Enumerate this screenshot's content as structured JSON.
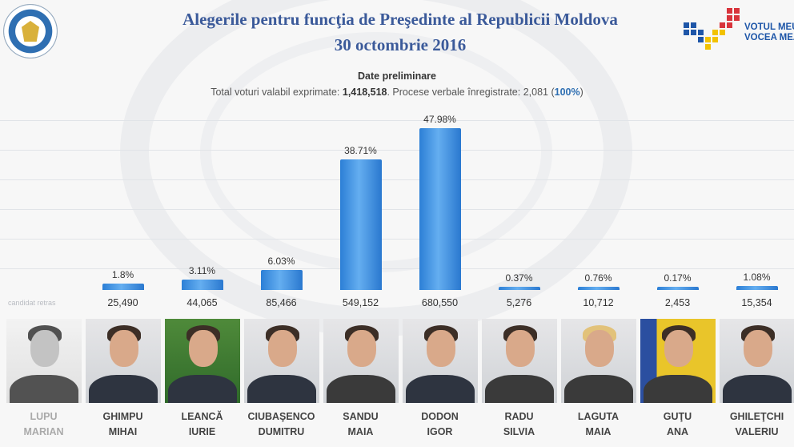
{
  "header": {
    "title": "Alegerile pentru funcţia de Preşedinte al Republicii Moldova",
    "date": "30 octombrie 2016",
    "preliminary": "Date preliminare",
    "totals_prefix": "Total voturi valabil exprimate: ",
    "total_votes": "1,418,518",
    "totals_mid": ". Procese verbale înregistrate: 2,081 (",
    "totals_pct": "100%",
    "totals_suffix": ")"
  },
  "logo": {
    "line1": "VOTUL MEU",
    "line2": "VOCEA MEA"
  },
  "withdrawn_note": "candidat retras",
  "colors": {
    "title": "#3b5a9a",
    "bar": "#2f84d8",
    "logo_blue": "#1e56a8",
    "logo_red": "#d8343b",
    "logo_yellow": "#f2c200"
  },
  "chart_data": {
    "type": "bar",
    "title": "Alegerile pentru funcţia de Preşedinte al Republicii Moldova",
    "categories": [
      "LUPU MARIAN",
      "GHIMPU MIHAI",
      "LEANCĂ IURIE",
      "CIUBAŞENCO DUMITRU",
      "SANDU MAIA",
      "DODON IGOR",
      "RADU SILVIA",
      "LAGUTA MAIA",
      "GUŢU ANA",
      "GHILEŢCHI VALERIU"
    ],
    "values": [
      null,
      1.8,
      3.11,
      6.03,
      38.71,
      47.98,
      0.37,
      0.76,
      0.17,
      1.08
    ],
    "ylim": [
      0,
      50
    ],
    "grid": true,
    "candidates": [
      {
        "surname": "LUPU",
        "first": "MARIAN",
        "votes": "",
        "pct_label": "",
        "withdrawn": true
      },
      {
        "surname": "GHIMPU",
        "first": "MIHAI",
        "votes": "25,490",
        "pct_label": "1.8%",
        "withdrawn": false
      },
      {
        "surname": "LEANCĂ",
        "first": "IURIE",
        "votes": "44,065",
        "pct_label": "3.11%",
        "withdrawn": false
      },
      {
        "surname": "CIUBAŞENCO",
        "first": "DUMITRU",
        "votes": "85,466",
        "pct_label": "6.03%",
        "withdrawn": false
      },
      {
        "surname": "SANDU",
        "first": "MAIA",
        "votes": "549,152",
        "pct_label": "38.71%",
        "withdrawn": false
      },
      {
        "surname": "DODON",
        "first": "IGOR",
        "votes": "680,550",
        "pct_label": "47.98%",
        "withdrawn": false
      },
      {
        "surname": "RADU",
        "first": "SILVIA",
        "votes": "5,276",
        "pct_label": "0.37%",
        "withdrawn": false
      },
      {
        "surname": "LAGUTA",
        "first": "MAIA",
        "votes": "10,712",
        "pct_label": "0.76%",
        "withdrawn": false
      },
      {
        "surname": "GUŢU",
        "first": "ANA",
        "votes": "2,453",
        "pct_label": "0.17%",
        "withdrawn": false
      },
      {
        "surname": "GHILEŢCHI",
        "first": "VALERIU",
        "votes": "15,354",
        "pct_label": "1.08%",
        "withdrawn": false
      }
    ]
  }
}
